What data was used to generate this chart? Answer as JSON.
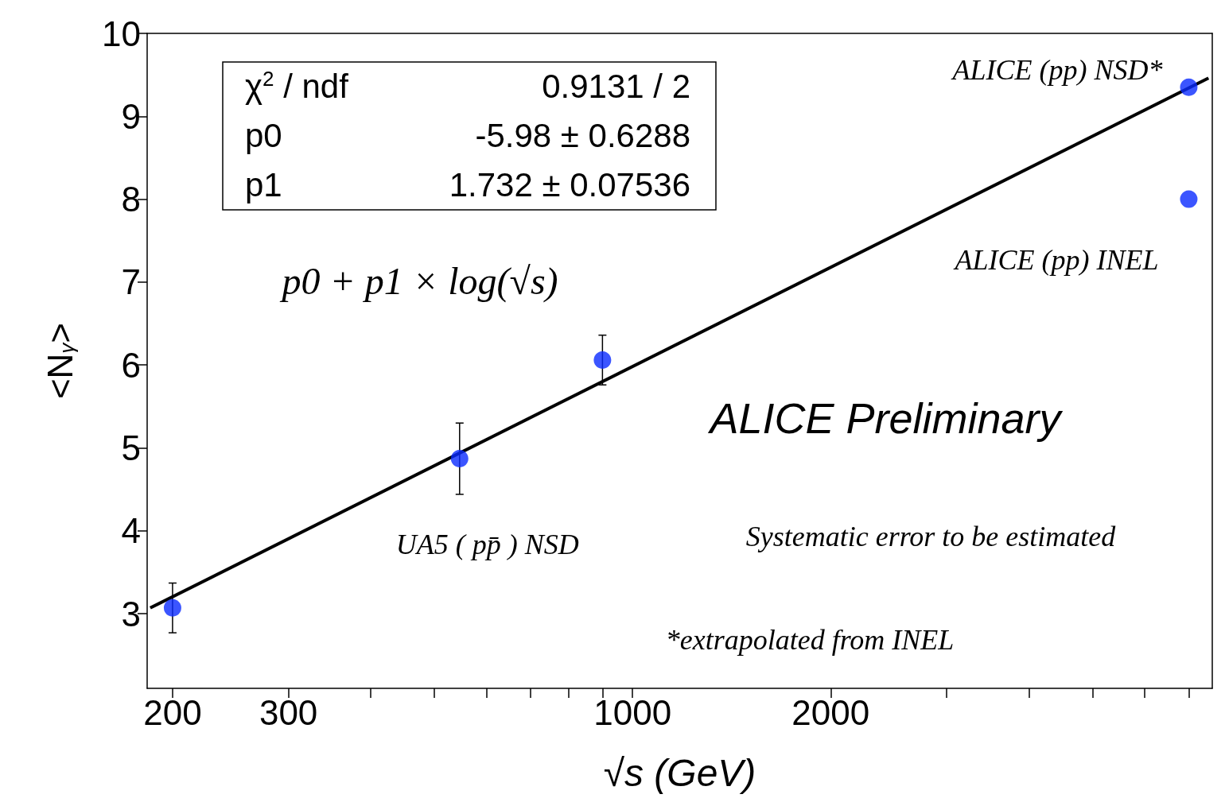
{
  "chart_data": {
    "type": "scatter",
    "xlabel": "√s (GeV)",
    "ylabel": "<N$_{γ}$>",
    "log": "x",
    "xlim": [
      183,
      7600
    ],
    "ylim": [
      2.1,
      10
    ],
    "xticks": [
      200,
      300,
      {
        "value": 400,
        "label": null
      },
      {
        "value": 500,
        "label": null
      },
      {
        "value": 600,
        "label": null
      },
      {
        "value": 700,
        "label": null
      },
      {
        "value": 800,
        "label": null
      },
      {
        "value": 900,
        "label": null
      },
      1000,
      2000,
      {
        "value": 3000,
        "label": null
      },
      {
        "value": 4000,
        "label": null
      },
      {
        "value": 5000,
        "label": null
      },
      {
        "value": 6000,
        "label": null
      },
      {
        "value": 7000,
        "label": null
      }
    ],
    "yticks": [
      3,
      4,
      5,
      6,
      7,
      8,
      9,
      10
    ],
    "grid": false,
    "legend": false,
    "marker": "circle",
    "series": [
      {
        "name": "UA5 ( pp̄ ) NSD",
        "color": "#0a2bff",
        "x": [
          200,
          546,
          900
        ],
        "values": [
          3.07,
          4.87,
          6.06
        ],
        "errors": [
          0.3,
          0.43,
          0.3
        ]
      },
      {
        "name": "ALICE (pp) NSD*",
        "color": "#0a2bff",
        "x": [
          7000
        ],
        "values": [
          9.35
        ]
      },
      {
        "name": "ALICE (pp) INEL",
        "color": "#0a2bff",
        "x": [
          7000
        ],
        "values": [
          8.0
        ]
      },
      {
        "type": "line",
        "color": "#000000",
        "x": [
          185,
          7500
        ],
        "values": [
          3.07,
          9.46
        ],
        "marker": "none"
      }
    ],
    "annotations": [
      "χ$^{2}$ / ndf",
      "0.9131 / 2",
      "p0",
      "-5.98 ± 0.6288",
      "p1",
      "1.732 ± 0.07536",
      "p0 + p1 × log(√s)",
      "ALICE Preliminary",
      "Systematic error to be estimated",
      "*extrapolated from INEL"
    ]
  }
}
